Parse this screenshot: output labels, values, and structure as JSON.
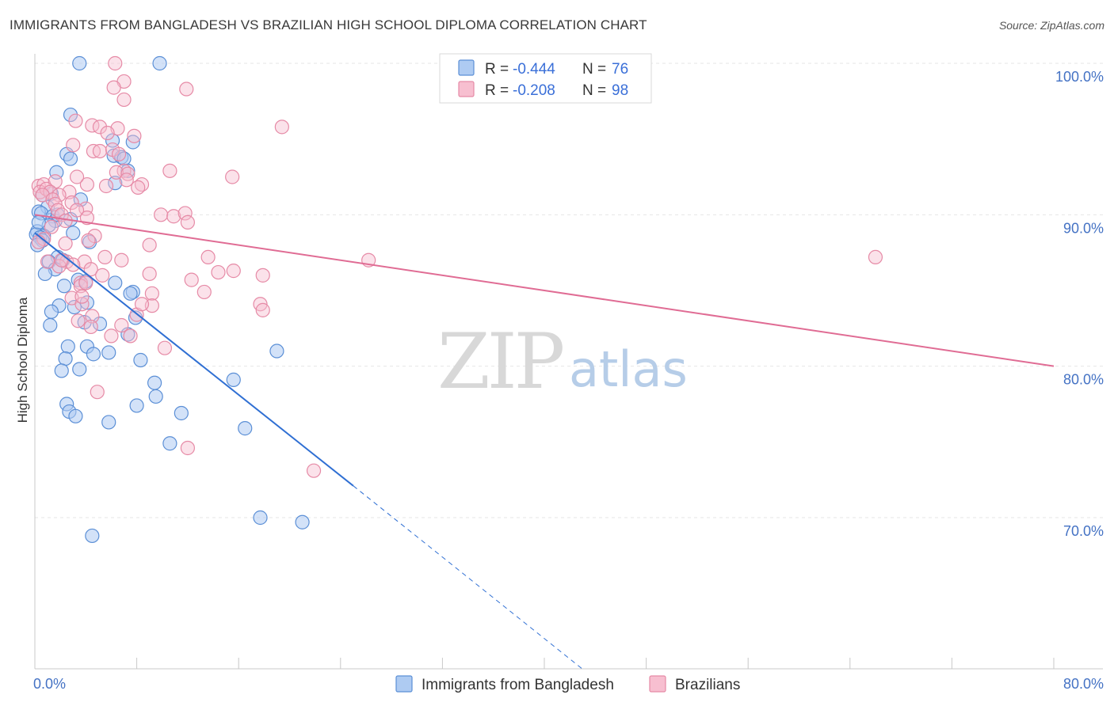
{
  "title": "IMMIGRANTS FROM BANGLADESH VS BRAZILIAN HIGH SCHOOL DIPLOMA CORRELATION CHART",
  "source": "Source: ZipAtlas.com",
  "watermark": {
    "zip": "ZIP",
    "atlas": "atlas"
  },
  "colors": {
    "blue_fill": "#aecbf2",
    "blue_stroke": "#5b8fd6",
    "blue_line": "#2f6fd3",
    "pink_fill": "#f7bfd0",
    "pink_stroke": "#e68aa6",
    "pink_line": "#e06c94",
    "axis_text": "#4472c4",
    "grid": "#e6e6e6"
  },
  "legend": {
    "rows": [
      {
        "r_label": "R = ",
        "r_value": "-0.444",
        "n_label": "N = ",
        "n_value": "76"
      },
      {
        "r_label": "R = ",
        "r_value": "-0.208",
        "n_label": "N = ",
        "n_value": "98"
      }
    ]
  },
  "bottom_legend": [
    "Immigrants from Bangladesh",
    "Brazilians"
  ],
  "chart_data": {
    "type": "scatter",
    "title": "IMMIGRANTS FROM BANGLADESH VS BRAZILIAN HIGH SCHOOL DIPLOMA CORRELATION CHART",
    "xlabel": "",
    "ylabel": "High School Diploma",
    "xlim": [
      0,
      80
    ],
    "ylim": [
      61,
      101
    ],
    "x_tick_labels": [
      "0.0%",
      "80.0%"
    ],
    "y_ticks": [
      70,
      80,
      90,
      100
    ],
    "y_tick_labels": [
      "70.0%",
      "80.0%",
      "90.0%",
      "100.0%"
    ],
    "grid": true,
    "legend_position": "top-center",
    "series": [
      {
        "name": "Immigrants from Bangladesh",
        "r": -0.444,
        "n": 76,
        "trend": {
          "x0": 0,
          "y0": 88.8,
          "x1": 25,
          "y1": 72.1,
          "dashed_to_x": 43,
          "dashed_to_y": 60.0
        },
        "points": [
          [
            3.5,
            100.0
          ],
          [
            9.8,
            100.0
          ],
          [
            2.8,
            96.6
          ],
          [
            2.5,
            94.0
          ],
          [
            2.8,
            93.7
          ],
          [
            7.7,
            94.8
          ],
          [
            6.1,
            94.9
          ],
          [
            6.2,
            93.9
          ],
          [
            6.8,
            93.8
          ],
          [
            7.0,
            93.7
          ],
          [
            1.7,
            92.8
          ],
          [
            7.3,
            92.9
          ],
          [
            6.3,
            92.1
          ],
          [
            1.3,
            91.4
          ],
          [
            0.6,
            91.3
          ],
          [
            3.6,
            91.0
          ],
          [
            1.0,
            90.5
          ],
          [
            0.3,
            90.2
          ],
          [
            0.5,
            90.1
          ],
          [
            1.4,
            89.9
          ],
          [
            2.8,
            89.7
          ],
          [
            1.6,
            89.6
          ],
          [
            1.1,
            89.3
          ],
          [
            0.2,
            88.9
          ],
          [
            3.0,
            88.8
          ],
          [
            0.1,
            88.7
          ],
          [
            0.7,
            88.6
          ],
          [
            0.4,
            88.5
          ],
          [
            0.6,
            88.3
          ],
          [
            4.3,
            88.2
          ],
          [
            0.2,
            88.0
          ],
          [
            1.8,
            87.2
          ],
          [
            2.2,
            87.0
          ],
          [
            1.1,
            86.9
          ],
          [
            1.6,
            86.4
          ],
          [
            0.8,
            86.1
          ],
          [
            3.4,
            85.7
          ],
          [
            4.0,
            85.6
          ],
          [
            6.3,
            85.5
          ],
          [
            2.3,
            85.3
          ],
          [
            7.7,
            84.9
          ],
          [
            7.5,
            84.8
          ],
          [
            4.1,
            84.2
          ],
          [
            1.9,
            84.0
          ],
          [
            3.1,
            83.9
          ],
          [
            1.3,
            83.6
          ],
          [
            7.9,
            83.2
          ],
          [
            3.9,
            82.9
          ],
          [
            5.1,
            82.8
          ],
          [
            1.2,
            82.7
          ],
          [
            7.3,
            82.1
          ],
          [
            2.6,
            81.3
          ],
          [
            4.1,
            81.3
          ],
          [
            4.6,
            80.8
          ],
          [
            5.8,
            80.9
          ],
          [
            19.0,
            81.0
          ],
          [
            2.4,
            80.5
          ],
          [
            8.3,
            80.4
          ],
          [
            2.1,
            79.7
          ],
          [
            3.5,
            79.8
          ],
          [
            15.6,
            79.1
          ],
          [
            9.4,
            78.9
          ],
          [
            9.5,
            78.0
          ],
          [
            2.5,
            77.5
          ],
          [
            8.0,
            77.4
          ],
          [
            2.7,
            77.0
          ],
          [
            11.5,
            76.9
          ],
          [
            3.2,
            76.7
          ],
          [
            5.8,
            76.3
          ],
          [
            16.5,
            75.9
          ],
          [
            10.6,
            74.9
          ],
          [
            17.7,
            70.0
          ],
          [
            21.0,
            69.7
          ],
          [
            4.5,
            68.8
          ],
          [
            0.3,
            89.5
          ],
          [
            1.8,
            90.0
          ]
        ]
      },
      {
        "name": "Brazilians",
        "r": -0.208,
        "n": 98,
        "trend": {
          "x0": 0,
          "y0": 90.0,
          "x1": 80,
          "y1": 80.0
        },
        "points": [
          [
            6.3,
            100.0
          ],
          [
            7.0,
            98.8
          ],
          [
            6.2,
            98.4
          ],
          [
            11.9,
            98.3
          ],
          [
            7.0,
            97.6
          ],
          [
            3.2,
            96.2
          ],
          [
            19.4,
            95.8
          ],
          [
            4.5,
            95.9
          ],
          [
            5.1,
            95.8
          ],
          [
            6.5,
            95.7
          ],
          [
            7.8,
            95.2
          ],
          [
            5.7,
            95.4
          ],
          [
            3.0,
            94.6
          ],
          [
            4.6,
            94.2
          ],
          [
            5.1,
            94.2
          ],
          [
            6.1,
            94.3
          ],
          [
            6.6,
            94.0
          ],
          [
            10.6,
            92.9
          ],
          [
            7.0,
            92.9
          ],
          [
            6.4,
            92.8
          ],
          [
            7.3,
            92.7
          ],
          [
            7.2,
            92.3
          ],
          [
            15.5,
            92.5
          ],
          [
            4.1,
            92.0
          ],
          [
            3.3,
            92.5
          ],
          [
            8.4,
            92.0
          ],
          [
            5.6,
            91.9
          ],
          [
            8.1,
            91.8
          ],
          [
            0.3,
            91.9
          ],
          [
            0.7,
            92.0
          ],
          [
            1.6,
            92.2
          ],
          [
            0.4,
            91.5
          ],
          [
            0.9,
            91.7
          ],
          [
            1.2,
            91.5
          ],
          [
            0.6,
            91.3
          ],
          [
            2.7,
            91.5
          ],
          [
            1.9,
            91.3
          ],
          [
            1.4,
            91.0
          ],
          [
            1.6,
            90.7
          ],
          [
            2.9,
            90.8
          ],
          [
            4.0,
            90.4
          ],
          [
            1.8,
            90.3
          ],
          [
            3.3,
            90.3
          ],
          [
            2.1,
            90.0
          ],
          [
            9.9,
            90.0
          ],
          [
            10.9,
            89.9
          ],
          [
            11.8,
            90.1
          ],
          [
            4.1,
            89.8
          ],
          [
            2.4,
            89.6
          ],
          [
            12.0,
            89.5
          ],
          [
            1.3,
            89.2
          ],
          [
            4.7,
            88.6
          ],
          [
            0.7,
            88.4
          ],
          [
            0.3,
            88.2
          ],
          [
            2.4,
            88.1
          ],
          [
            4.2,
            88.3
          ],
          [
            13.6,
            87.2
          ],
          [
            5.5,
            87.2
          ],
          [
            26.2,
            87.0
          ],
          [
            66.0,
            87.2
          ],
          [
            2.5,
            86.9
          ],
          [
            3.9,
            86.9
          ],
          [
            1.9,
            86.6
          ],
          [
            3.0,
            86.7
          ],
          [
            4.4,
            86.4
          ],
          [
            9.0,
            86.1
          ],
          [
            15.6,
            86.3
          ],
          [
            14.4,
            86.2
          ],
          [
            17.9,
            86.0
          ],
          [
            12.3,
            85.7
          ],
          [
            3.6,
            85.5
          ],
          [
            3.6,
            85.3
          ],
          [
            4.0,
            85.5
          ],
          [
            13.3,
            84.9
          ],
          [
            9.2,
            84.8
          ],
          [
            2.9,
            84.5
          ],
          [
            17.7,
            84.1
          ],
          [
            3.7,
            84.1
          ],
          [
            9.2,
            84.0
          ],
          [
            17.9,
            83.7
          ],
          [
            4.5,
            83.3
          ],
          [
            8.0,
            83.4
          ],
          [
            3.4,
            83.0
          ],
          [
            6.8,
            82.7
          ],
          [
            7.5,
            82.0
          ],
          [
            6.0,
            82.0
          ],
          [
            10.2,
            81.2
          ],
          [
            4.9,
            78.3
          ],
          [
            12.0,
            74.6
          ],
          [
            21.9,
            73.1
          ],
          [
            4.4,
            82.6
          ],
          [
            2.1,
            87.0
          ],
          [
            5.3,
            86.0
          ],
          [
            9.0,
            88.0
          ],
          [
            1.0,
            86.9
          ],
          [
            3.7,
            84.6
          ],
          [
            8.4,
            84.1
          ],
          [
            6.8,
            87.0
          ]
        ]
      }
    ]
  }
}
